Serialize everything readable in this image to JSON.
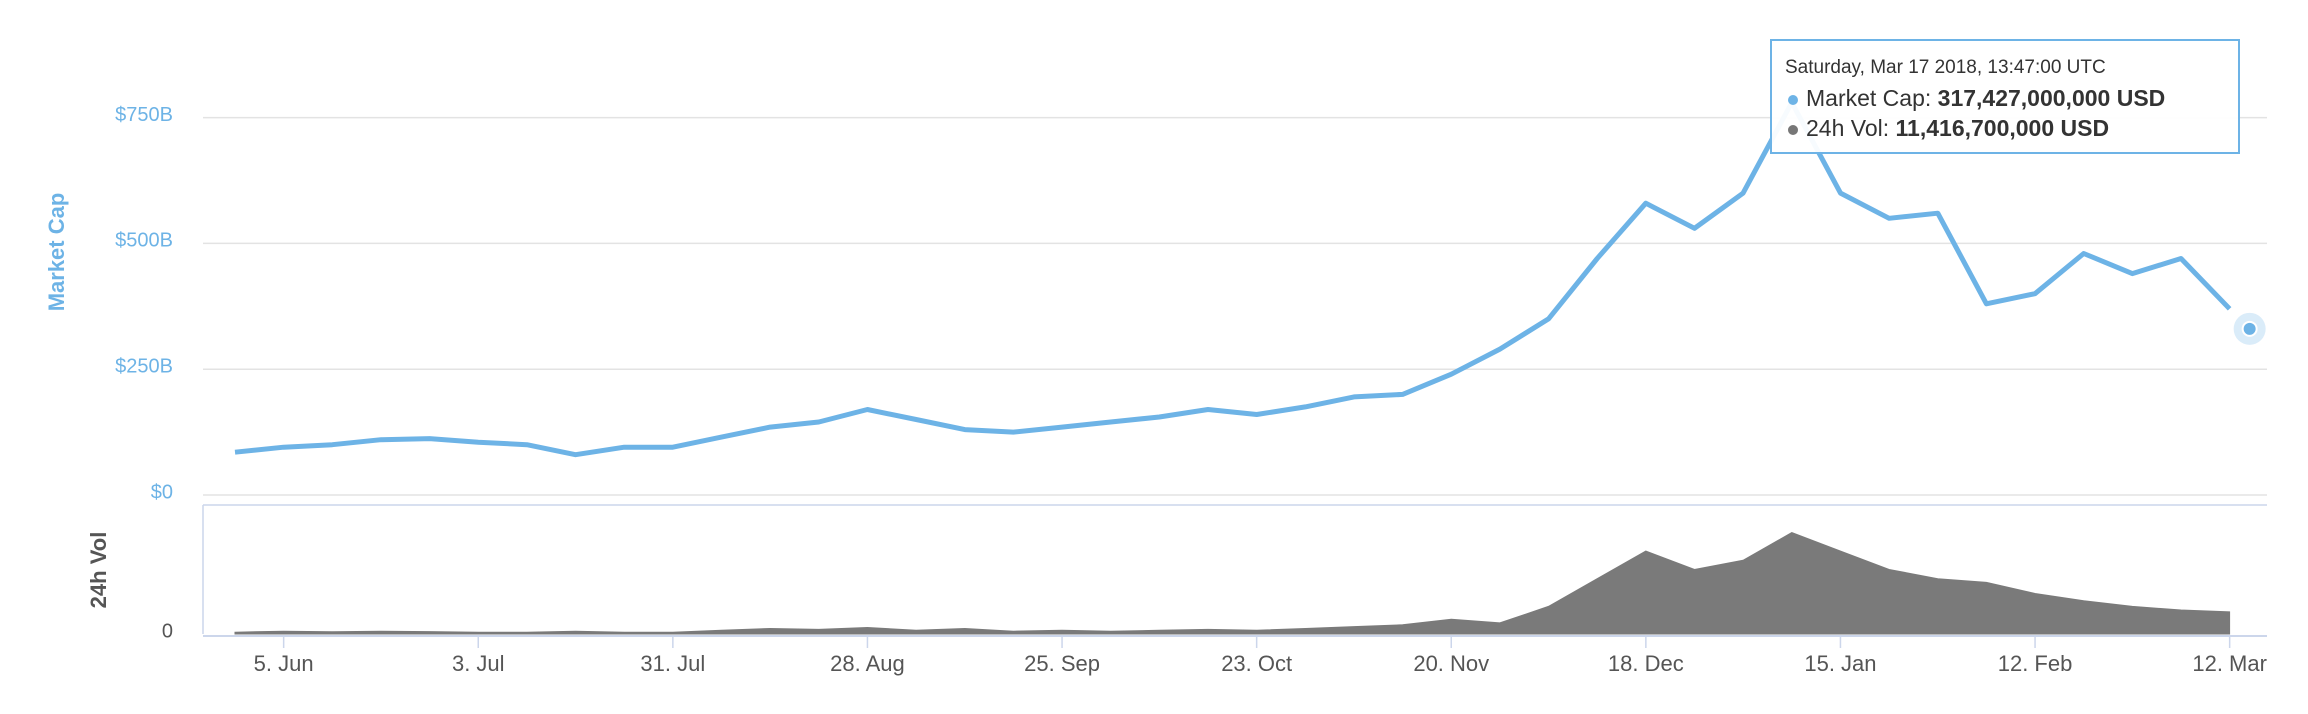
{
  "chart_data": [
    {
      "type": "line",
      "ylabel": "Market Cap",
      "color": "#6db3e6",
      "categories": [
        null,
        "5. Jun",
        null,
        null,
        null,
        "3. Jul",
        null,
        null,
        null,
        "31. Jul",
        null,
        null,
        null,
        "28. Aug",
        null,
        null,
        null,
        "25. Sep",
        null,
        null,
        null,
        "23. Oct",
        null,
        null,
        null,
        "20. Nov",
        null,
        null,
        null,
        "18. Dec",
        null,
        null,
        null,
        "15. Jan",
        null,
        null,
        null,
        "12. Feb",
        null,
        null,
        null,
        "12. Mar"
      ],
      "values": [
        85,
        95,
        100,
        110,
        112,
        105,
        100,
        80,
        95,
        95,
        115,
        135,
        145,
        170,
        150,
        130,
        125,
        135,
        145,
        155,
        170,
        160,
        175,
        195,
        200,
        240,
        290,
        350,
        470,
        580,
        530,
        600,
        780,
        600,
        550,
        560,
        380,
        400,
        480,
        440,
        470,
        370
      ],
      "ylim": [
        0,
        950
      ],
      "yticks": [
        {
          "value": 0,
          "label": "$0"
        },
        {
          "value": 250,
          "label": "$250B"
        },
        {
          "value": 500,
          "label": "$500B"
        },
        {
          "value": 750,
          "label": "$750B"
        }
      ],
      "grid": true,
      "tooltip": {
        "title": "Saturday, Mar 17 2018, 13:47:00 UTC",
        "rows": [
          {
            "label": "Market Cap:",
            "value": "317,427,000,000 USD",
            "color": "#6db3e6"
          },
          {
            "label": "24h Vol:",
            "value": "11,416,700,000 USD",
            "color": "#777777"
          }
        ]
      }
    },
    {
      "type": "area",
      "ylabel": "24h Vol",
      "color": "#7a7a7a",
      "values": [
        1,
        1.5,
        1.2,
        1.5,
        1.3,
        1,
        1,
        1.5,
        1,
        1,
        2,
        3,
        2.5,
        3.5,
        2,
        3,
        1.5,
        2,
        1.5,
        2,
        2.5,
        2,
        3,
        4,
        5,
        8,
        6,
        15,
        30,
        45,
        35,
        40,
        55,
        45,
        35,
        30,
        28,
        22,
        18,
        15,
        13,
        12
      ],
      "ylim": [
        0,
        70
      ],
      "yticks": [
        0
      ]
    }
  ]
}
